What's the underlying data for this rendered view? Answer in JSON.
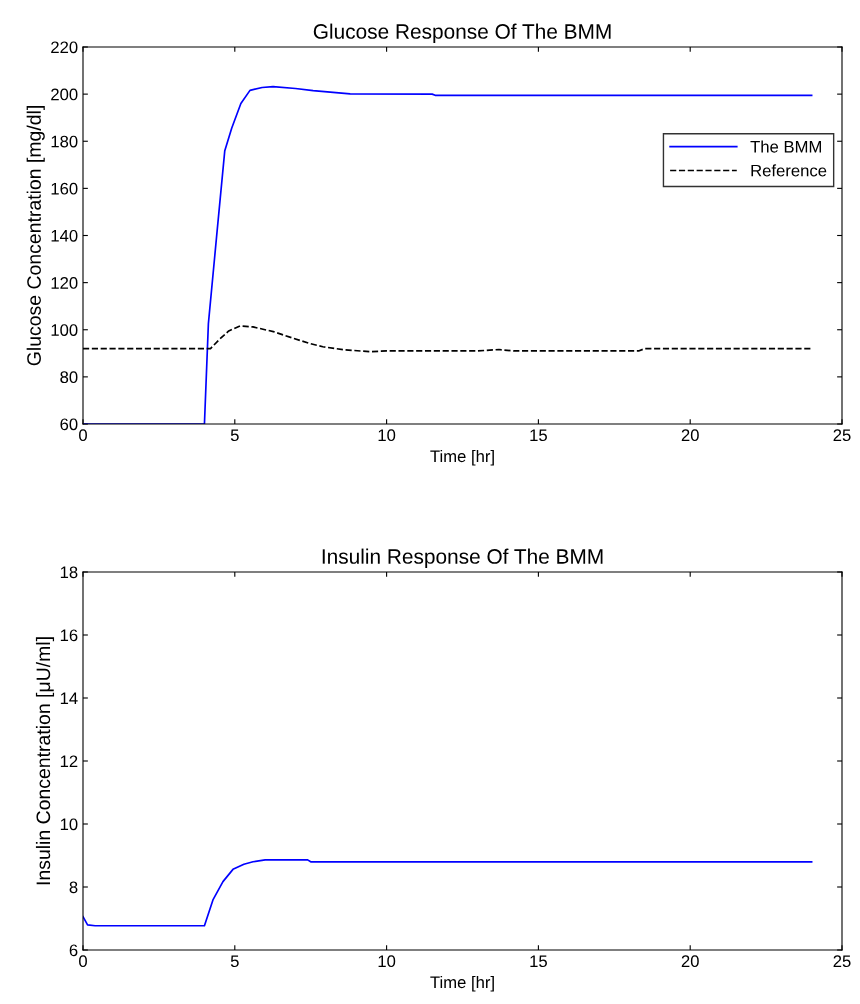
{
  "chart_data": [
    {
      "type": "line",
      "title": "Glucose Response Of The BMM",
      "xlabel": "Time [hr]",
      "ylabel": "Glucose Concentration [mg/dl]",
      "xlim": [
        0,
        25
      ],
      "xticks": [
        0,
        5,
        10,
        15,
        20,
        25
      ],
      "ylim": [
        60,
        220
      ],
      "yticks": [
        60,
        80,
        100,
        120,
        140,
        160,
        180,
        200,
        220
      ],
      "grid": false,
      "legend": "right",
      "series": [
        {
          "name": "The BMM",
          "color": "#0000ff",
          "line_style": "solid",
          "x": [
            0,
            4.0,
            4.13,
            4.4,
            4.67,
            4.9,
            5.2,
            5.5,
            5.9,
            6.26,
            7.0,
            7.58,
            8.8,
            11.5,
            11.6,
            24
          ],
          "values": [
            60,
            60,
            102.6,
            139.5,
            176,
            185.6,
            196,
            201.6,
            202.8,
            203.2,
            202.4,
            201.5,
            200.1,
            200,
            199.5,
            199.5
          ]
        },
        {
          "name": "Reference",
          "color": "#000000",
          "line_style": "dashed",
          "x": [
            0,
            4.2,
            4.5,
            4.8,
            5.17,
            5.6,
            6.27,
            6.9,
            7.46,
            7.9,
            8.6,
            9.45,
            10.0,
            13.0,
            13.7,
            14.2,
            18.3,
            18.5,
            24
          ],
          "values": [
            92,
            92,
            96,
            99.5,
            101.6,
            101.2,
            99.2,
            96.5,
            94.2,
            92.8,
            91.5,
            90.7,
            91,
            91,
            91.6,
            91,
            91,
            92,
            92
          ]
        }
      ]
    },
    {
      "type": "line",
      "title": "Insulin Response Of The BMM",
      "xlabel": "Time [hr]",
      "ylabel": "Insulin Concentration [μU/ml]",
      "xlim": [
        0,
        25
      ],
      "xticks": [
        0,
        5,
        10,
        15,
        20,
        25
      ],
      "ylim": [
        6,
        18
      ],
      "yticks": [
        6,
        8,
        10,
        12,
        14,
        16,
        18
      ],
      "grid": false,
      "legend": false,
      "series": [
        {
          "color": "#0000ff",
          "line_style": "solid",
          "x": [
            0,
            0.15,
            0.4,
            4.0,
            4.28,
            4.61,
            4.94,
            5.3,
            5.6,
            6.0,
            7.4,
            7.5,
            24
          ],
          "values": [
            7.06,
            6.8,
            6.77,
            6.77,
            7.59,
            8.17,
            8.56,
            8.72,
            8.8,
            8.86,
            8.86,
            8.8,
            8.8
          ]
        }
      ]
    }
  ]
}
